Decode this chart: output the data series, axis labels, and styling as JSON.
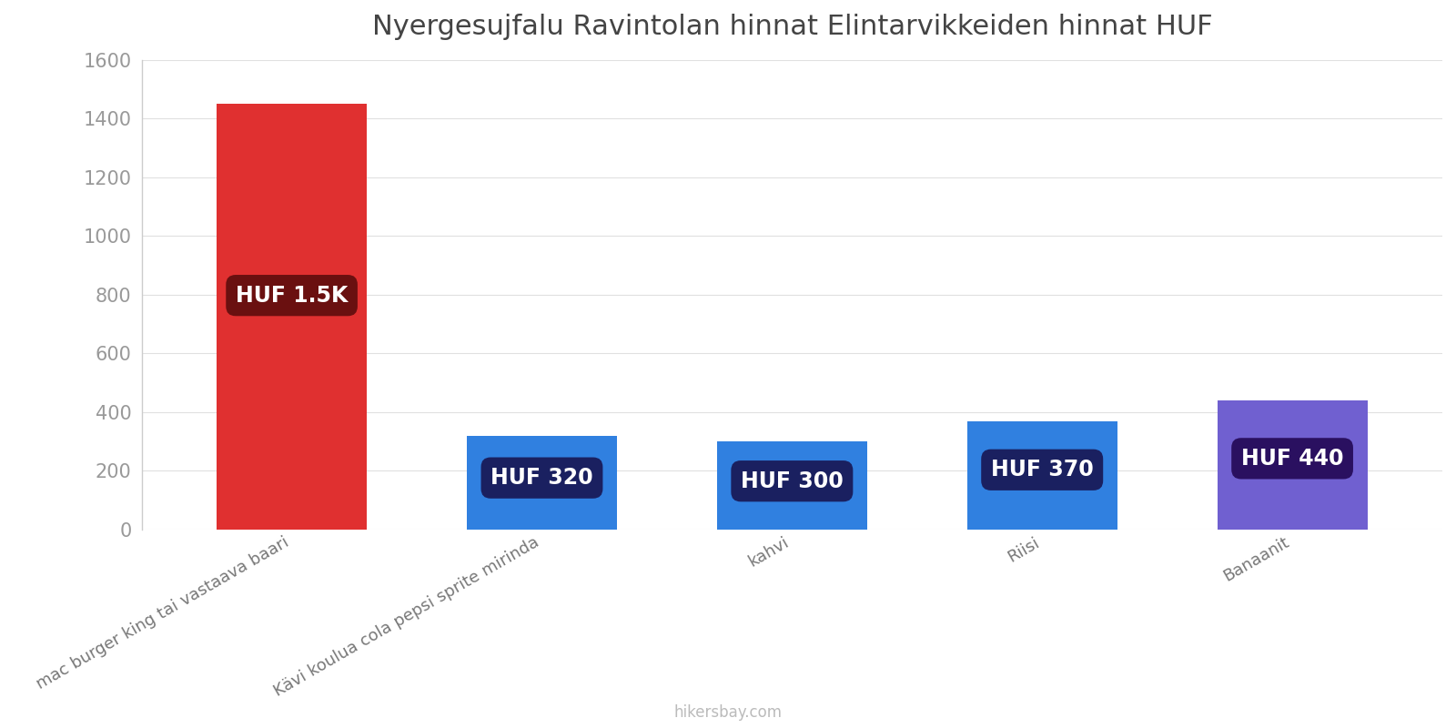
{
  "title": "Nyergesujfalu Ravintolan hinnat Elintarvikkeiden hinnat HUF",
  "categories": [
    "mac burger king tai vastaava baari",
    "Kävi koulua cola pepsi sprite mirinda",
    "kahvi",
    "Riisi",
    "Banaanit"
  ],
  "values": [
    1450,
    320,
    300,
    370,
    440
  ],
  "bar_colors": [
    "#e03030",
    "#3080e0",
    "#3080e0",
    "#3080e0",
    "#7060d0"
  ],
  "label_texts": [
    "HUF 1.5K",
    "HUF 320",
    "HUF 300",
    "HUF 370",
    "HUF 440"
  ],
  "label_bg_colors": [
    "#6a1010",
    "#1a2060",
    "#1a2060",
    "#1a2060",
    "#2a1060"
  ],
  "ylim": [
    0,
    1600
  ],
  "yticks": [
    0,
    200,
    400,
    600,
    800,
    1000,
    1200,
    1400,
    1600
  ],
  "background_color": "#ffffff",
  "grid_color": "#e0e0e0",
  "title_fontsize": 22,
  "label_fontsize": 17,
  "tick_fontsize": 15,
  "watermark": "hikersbay.com"
}
